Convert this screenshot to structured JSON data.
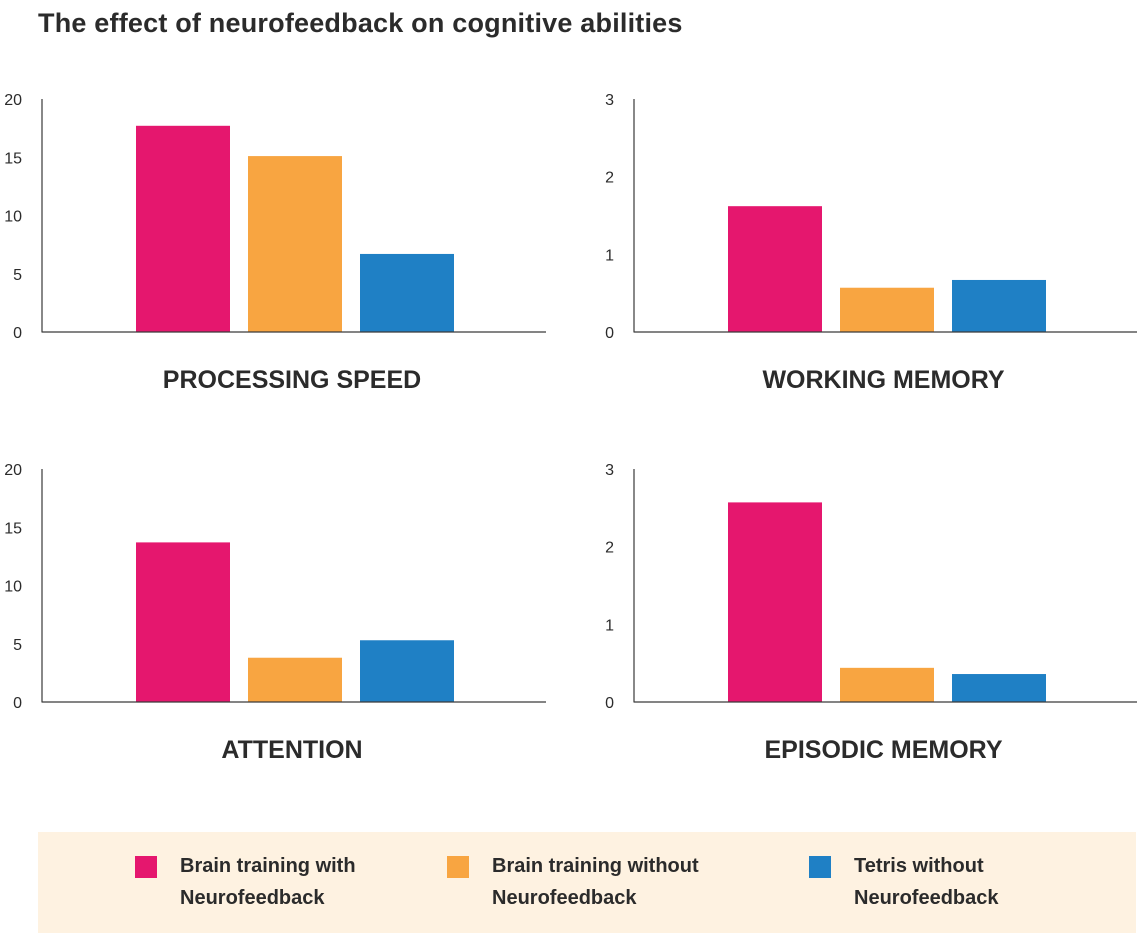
{
  "title": "The effect of neurofeedback on cognitive abilities",
  "colors": [
    "#e5176e",
    "#f8a541",
    "#1f80c5"
  ],
  "legend": [
    {
      "label": "Brain training with Neurofeedback",
      "color": "#e5176e"
    },
    {
      "label": "Brain training without Neurofeedback",
      "color": "#f8a541"
    },
    {
      "label": "Tetris without Neurofeedback",
      "color": "#1f80c5"
    }
  ],
  "chart_data": [
    {
      "type": "bar",
      "title": "PROCESSING SPEED",
      "categories": [
        "Brain training with Neurofeedback",
        "Brain training without Neurofeedback",
        "Tetris without Neurofeedback"
      ],
      "values": [
        17.7,
        15.1,
        6.7
      ],
      "ylim": [
        0,
        20
      ],
      "yticks": [
        0,
        5,
        10,
        15,
        20
      ]
    },
    {
      "type": "bar",
      "title": "WORKING MEMORY",
      "categories": [
        "Brain training with Neurofeedback",
        "Brain training without Neurofeedback",
        "Tetris without Neurofeedback"
      ],
      "values": [
        1.62,
        0.57,
        0.67
      ],
      "ylim": [
        0,
        3
      ],
      "yticks": [
        0,
        1,
        2,
        3
      ]
    },
    {
      "type": "bar",
      "title": "ATTENTION",
      "categories": [
        "Brain training with Neurofeedback",
        "Brain training without Neurofeedback",
        "Tetris without Neurofeedback"
      ],
      "values": [
        13.7,
        3.8,
        5.3
      ],
      "ylim": [
        0,
        20
      ],
      "yticks": [
        0,
        5,
        10,
        15,
        20
      ]
    },
    {
      "type": "bar",
      "title": "EPISODIC MEMORY",
      "categories": [
        "Brain training with Neurofeedback",
        "Brain training without Neurofeedback",
        "Tetris without Neurofeedback"
      ],
      "values": [
        2.57,
        0.44,
        0.36
      ],
      "ylim": [
        0,
        3
      ],
      "yticks": [
        0,
        1,
        2,
        3
      ]
    }
  ]
}
